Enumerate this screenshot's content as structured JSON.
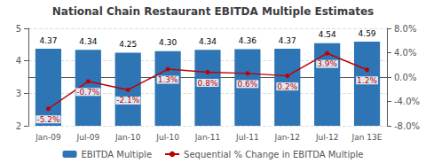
{
  "chart_data": {
    "type": "bar",
    "title": "National Chain Restaurant EBITDA Multiple Estimates",
    "categories": [
      "Jan-09",
      "Jul-09",
      "Jan-10",
      "Jul-10",
      "Jan-11",
      "Jul-11",
      "Jan-12",
      "Jul-12",
      "Jan 13E"
    ],
    "series": [
      {
        "name": "EBITDA Multiple",
        "type": "bar",
        "color": "#2E75B6",
        "values": [
          4.37,
          4.34,
          4.25,
          4.3,
          4.34,
          4.36,
          4.37,
          4.54,
          4.59
        ],
        "value_labels": [
          "4.37",
          "4.34",
          "4.25",
          "4.30",
          "4.34",
          "4.36",
          "4.37",
          "4.54",
          "4.59"
        ]
      },
      {
        "name": "Sequential % Change in EBITDA Multiple",
        "type": "line",
        "axis": "y2",
        "color": "#C00000",
        "marker": "circle",
        "values": [
          -5.2,
          -0.7,
          -2.1,
          1.3,
          0.8,
          0.6,
          0.2,
          3.9,
          1.2
        ],
        "value_labels": [
          "-5.2%",
          "-0.7%",
          "-2.1%",
          "1.3%",
          "0.8%",
          "0.6%",
          "0.2%",
          "3.9%",
          "1.2%"
        ]
      }
    ],
    "ylim": [
      2.0,
      5.0
    ],
    "yticks": [
      2,
      3,
      4,
      5
    ],
    "y2lim": [
      -8.0,
      8.0
    ],
    "y2ticks": [
      {
        "value": -8.0,
        "label": "-8.0%"
      },
      {
        "value": -4.0,
        "label": "-4.0%"
      },
      {
        "value": 0.0,
        "label": "0.0%"
      },
      {
        "value": 4.0,
        "label": "4.0%"
      },
      {
        "value": 8.0,
        "label": "8.0%"
      }
    ],
    "grid": true,
    "legend": "bottom",
    "data_labels": true
  }
}
